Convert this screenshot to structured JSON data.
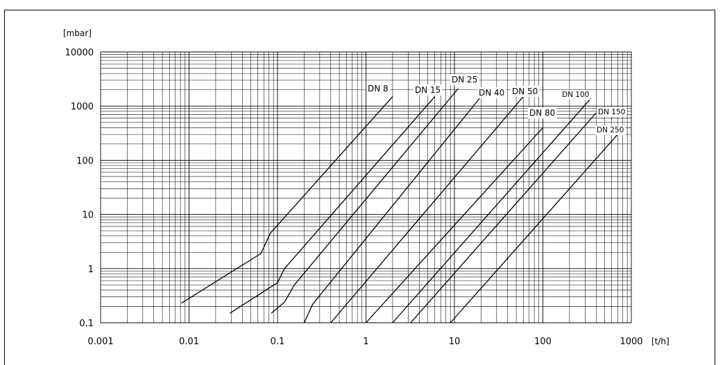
{
  "chart_data": {
    "type": "line",
    "title": "",
    "xlabel": "[t/h]",
    "ylabel": "[mbar]",
    "x_scale": "log",
    "y_scale": "log",
    "xlim": [
      0.001,
      1000
    ],
    "ylim": [
      0.1,
      10000
    ],
    "x_ticks": [
      "0.001",
      "0.01",
      "0.1",
      "1",
      "10",
      "100",
      "1000"
    ],
    "y_ticks": [
      "0.1",
      "1",
      "10",
      "100",
      "1000",
      "10000"
    ],
    "grid": true,
    "series": [
      {
        "name": "DN 8",
        "points": [
          [
            0.0082,
            0.23
          ],
          [
            0.065,
            1.9
          ],
          [
            0.083,
            4.5
          ],
          [
            2.0,
            1500
          ]
        ]
      },
      {
        "name": "DN 15",
        "points": [
          [
            0.029,
            0.15
          ],
          [
            0.1,
            0.55
          ],
          [
            0.12,
            1.0
          ],
          [
            6.0,
            1500
          ]
        ]
      },
      {
        "name": "DN 25",
        "points": [
          [
            0.085,
            0.15
          ],
          [
            0.12,
            0.24
          ],
          [
            0.155,
            0.5
          ],
          [
            11.0,
            2100
          ]
        ]
      },
      {
        "name": "DN 40",
        "points": [
          [
            0.2,
            0.1
          ],
          [
            0.25,
            0.22
          ],
          [
            20.0,
            1500
          ]
        ]
      },
      {
        "name": "DN 50",
        "points": [
          [
            0.4,
            0.1
          ],
          [
            60.0,
            1500
          ]
        ]
      },
      {
        "name": "DN 80",
        "points": [
          [
            1.0,
            0.1
          ],
          [
            100.0,
            400
          ]
        ]
      },
      {
        "name": "DN 100",
        "points": [
          [
            2.0,
            0.1
          ],
          [
            350.0,
            1400
          ]
        ]
      },
      {
        "name": "DN 150",
        "points": [
          [
            3.2,
            0.1
          ],
          [
            400.0,
            750
          ]
        ]
      },
      {
        "name": "DN 250",
        "points": [
          [
            9.0,
            0.1
          ],
          [
            700.0,
            300
          ]
        ]
      }
    ]
  }
}
